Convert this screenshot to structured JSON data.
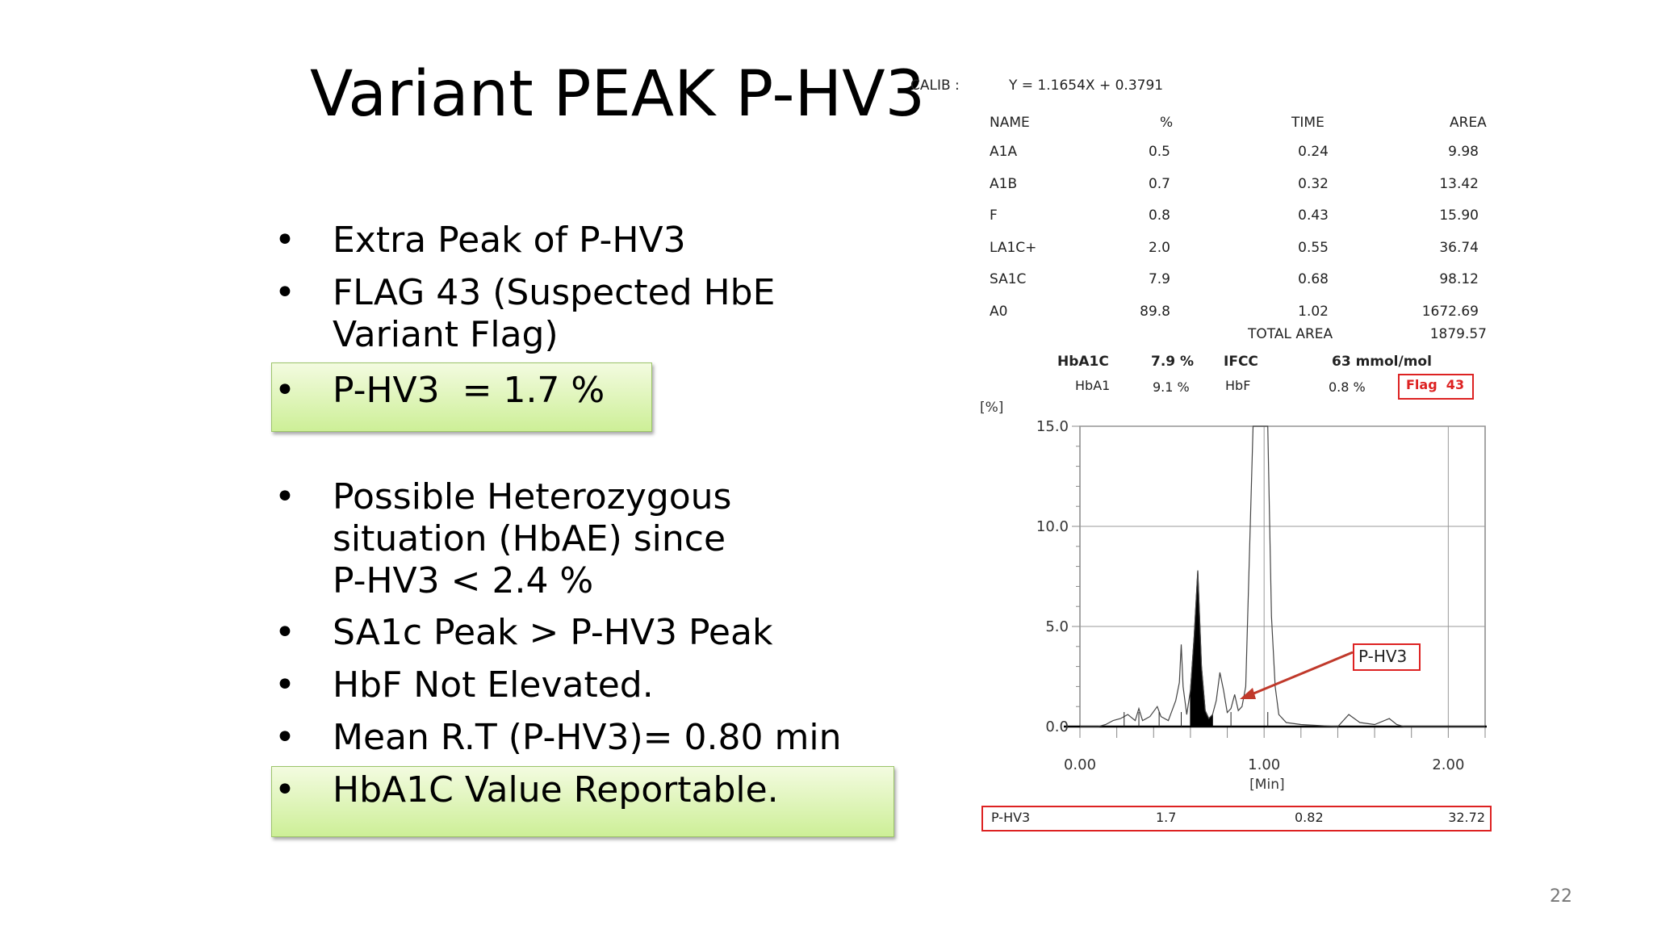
{
  "slide": {
    "title": "Variant PEAK P-HV3",
    "page_number": "22",
    "bullets": [
      {
        "dot": "•",
        "text": "Extra Peak of P-HV3"
      },
      {
        "dot": "•",
        "text": "FLAG 43 (Suspected HbE"
      },
      {
        "dot": "",
        "text": "Variant Flag)"
      },
      {
        "dot": "•",
        "text": "P-HV3  = 1.7 %"
      },
      {
        "dot": "•",
        "text": "Possible Heterozygous"
      },
      {
        "dot": "",
        "text": "situation (HbAE) since"
      },
      {
        "dot": "",
        "text": "P-HV3 < 2.4 %"
      },
      {
        "dot": "•",
        "text": "SA1c Peak > P-HV3 Peak"
      },
      {
        "dot": "•",
        "text": "HbF Not Elevated."
      },
      {
        "dot": "•",
        "text": "Mean R.T (P-HV3)= 0.80 min"
      },
      {
        "dot": "•",
        "text": "HbA1C Value Reportable."
      }
    ]
  },
  "report": {
    "calib_label": "CALIB :",
    "calib_eq": "Y = 1.1654X + 0.3791",
    "headers": [
      "NAME",
      "%",
      "TIME",
      "AREA"
    ],
    "rows": [
      [
        "A1A",
        "0.5",
        "0.24",
        "9.98"
      ],
      [
        "A1B",
        "0.7",
        "0.32",
        "13.42"
      ],
      [
        "F",
        "0.8",
        "0.43",
        "15.90"
      ],
      [
        "LA1C+",
        "2.0",
        "0.55",
        "36.74"
      ],
      [
        "SA1C",
        "7.9",
        "0.68",
        "98.12"
      ],
      [
        "A0",
        "89.8",
        "1.02",
        "1672.69"
      ]
    ],
    "total_area_label": "TOTAL AREA",
    "total_area": "1879.57",
    "hba1c_label": "HbA1C",
    "hba1c_value": "7.9 %",
    "ifcc_label": "IFCC",
    "ifcc_value": "63 mmol/mol",
    "hba1_label": "HbA1",
    "hba1_value": "9.1 %",
    "hbf_label": "HbF",
    "hbf_value": "0.8 %",
    "flag": "Flag  43",
    "phv3_row": [
      "P-HV3",
      "1.7",
      "0.82",
      "32.72"
    ]
  },
  "chart_data": {
    "type": "line",
    "title": "",
    "ylabel": "[%]",
    "xlabel": "[Min]",
    "xlim": [
      0,
      2.2
    ],
    "ylim": [
      0,
      15
    ],
    "x_ticks": [
      "0.00",
      "1.00",
      "2.00"
    ],
    "y_ticks": [
      "0.0",
      "5.0",
      "10.0",
      "15.0"
    ],
    "annotation": "P-HV3",
    "series": [
      {
        "x": [
          0.0,
          0.1,
          0.14,
          0.18,
          0.22,
          0.26,
          0.3,
          0.32,
          0.34,
          0.38,
          0.42,
          0.44,
          0.48,
          0.52,
          0.54,
          0.55,
          0.56,
          0.58,
          0.6,
          0.62,
          0.64,
          0.66,
          0.68,
          0.7,
          0.72,
          0.74,
          0.76,
          0.78,
          0.8,
          0.82,
          0.84,
          0.86,
          0.88,
          0.9,
          0.94,
          0.96,
          0.98,
          1.0,
          1.02,
          1.04,
          1.06,
          1.08,
          1.12,
          1.2,
          1.4,
          1.46,
          1.52,
          1.6,
          1.68,
          1.72,
          1.76,
          2.0,
          2.2
        ],
        "y": [
          0.0,
          0.0,
          0.1,
          0.3,
          0.4,
          0.6,
          0.3,
          0.9,
          0.3,
          0.5,
          1.0,
          0.5,
          0.3,
          1.3,
          2.2,
          4.1,
          2.0,
          0.6,
          1.8,
          4.5,
          7.8,
          3.0,
          0.8,
          0.4,
          0.6,
          1.3,
          2.7,
          1.8,
          0.7,
          0.9,
          1.6,
          0.8,
          1.0,
          2.0,
          15.0,
          15.0,
          15.0,
          15.0,
          15.0,
          5.5,
          2.0,
          0.6,
          0.2,
          0.1,
          0.0,
          0.6,
          0.2,
          0.1,
          0.4,
          0.1,
          0.0,
          0.0,
          0.0
        ]
      }
    ]
  }
}
